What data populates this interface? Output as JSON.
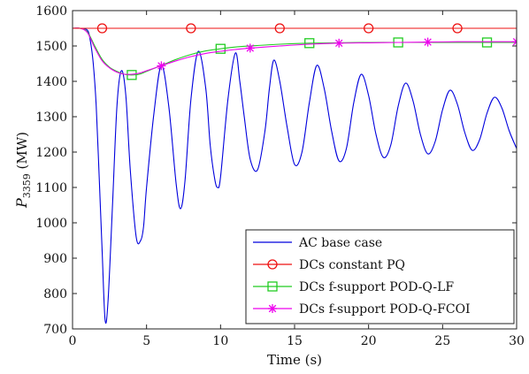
{
  "chart_data": {
    "type": "line",
    "xlabel": "Time (s)",
    "ylabel": {
      "base": "P",
      "subscript": "3359",
      "unit": " (MW)"
    },
    "xlim": [
      0,
      30
    ],
    "ylim": [
      700,
      1600
    ],
    "x_ticks": [
      0,
      5,
      10,
      15,
      20,
      25,
      30
    ],
    "y_ticks": [
      700,
      800,
      900,
      1000,
      1100,
      1200,
      1300,
      1400,
      1500,
      1600
    ],
    "x_tick_labels": [
      "0",
      "5",
      "10",
      "15",
      "20",
      "25",
      "30"
    ],
    "y_tick_labels": [
      "700",
      "800",
      "900",
      "1000",
      "1100",
      "1200",
      "1300",
      "1400",
      "1500",
      "1600"
    ],
    "grid": false,
    "legend_position": "bottom-right",
    "series": [
      {
        "name": "AC base case",
        "color": "#0000dd",
        "marker": "none",
        "marker_x": [],
        "x": [
          0,
          0.5,
          1.0,
          1.2,
          1.4,
          1.6,
          1.8,
          2.0,
          2.2,
          2.4,
          2.7,
          3.0,
          3.3,
          3.6,
          3.9,
          4.3,
          4.6,
          4.8,
          5.0,
          5.5,
          6.0,
          6.5,
          7.0,
          7.3,
          7.6,
          8.0,
          8.5,
          9.0,
          9.3,
          9.6,
          9.8,
          10.0,
          10.5,
          11.0,
          11.3,
          11.6,
          12.0,
          12.5,
          13.0,
          13.3,
          13.6,
          14.0,
          14.5,
          15.0,
          15.5,
          16.0,
          16.5,
          17.0,
          17.5,
          18.0,
          18.5,
          19.0,
          19.5,
          20.0,
          20.5,
          21.0,
          21.5,
          22.0,
          22.5,
          23.0,
          23.5,
          24.0,
          24.5,
          25.0,
          25.5,
          26.0,
          26.5,
          27.0,
          27.5,
          28.0,
          28.5,
          29.0,
          29.5,
          30.0
        ],
        "y": [
          1550,
          1550,
          1545,
          1515,
          1450,
          1330,
          1130,
          920,
          725,
          780,
          1050,
          1330,
          1430,
          1360,
          1150,
          960,
          950,
          990,
          1100,
          1310,
          1445,
          1330,
          1110,
          1040,
          1120,
          1350,
          1485,
          1380,
          1220,
          1125,
          1100,
          1130,
          1350,
          1480,
          1400,
          1300,
          1180,
          1150,
          1260,
          1380,
          1460,
          1400,
          1270,
          1165,
          1200,
          1340,
          1445,
          1380,
          1260,
          1175,
          1210,
          1340,
          1420,
          1360,
          1250,
          1185,
          1220,
          1330,
          1395,
          1345,
          1250,
          1195,
          1230,
          1320,
          1375,
          1335,
          1255,
          1205,
          1235,
          1310,
          1355,
          1325,
          1260,
          1210
        ]
      },
      {
        "name": "DCs constant PQ",
        "color": "#ee1111",
        "marker": "circle",
        "marker_x": [
          2,
          8,
          14,
          20,
          26
        ],
        "x": [
          0,
          30
        ],
        "y": [
          1550,
          1550
        ]
      },
      {
        "name": "DCs f-support POD-Q-LF",
        "color": "#22cc22",
        "marker": "square",
        "marker_x": [
          4,
          10,
          16,
          22,
          28
        ],
        "x": [
          0,
          0.5,
          1.0,
          1.5,
          2.0,
          2.5,
          3.0,
          3.5,
          4.0,
          4.5,
          5.0,
          6.0,
          7.0,
          8.0,
          9.0,
          10.0,
          11.0,
          12.0,
          14.0,
          16.0,
          18.0,
          20.0,
          22.0,
          24.0,
          26.0,
          28.0,
          30.0
        ],
        "y": [
          1550,
          1550,
          1540,
          1500,
          1462,
          1440,
          1428,
          1420,
          1418,
          1420,
          1428,
          1445,
          1462,
          1476,
          1486,
          1492,
          1497,
          1500,
          1505,
          1508,
          1509,
          1510,
          1510,
          1510,
          1510,
          1510,
          1510
        ]
      },
      {
        "name": "DCs f-support POD-Q-FCOI",
        "color": "#ee00ee",
        "marker": "star",
        "marker_x": [
          6,
          12,
          18,
          24,
          30
        ],
        "x": [
          0,
          0.5,
          1.0,
          1.5,
          2.0,
          2.5,
          3.0,
          3.5,
          4.0,
          4.5,
          5.0,
          6.0,
          7.0,
          8.0,
          9.0,
          10.0,
          11.0,
          12.0,
          14.0,
          16.0,
          18.0,
          20.0,
          22.0,
          24.0,
          26.0,
          28.0,
          30.0
        ],
        "y": [
          1550,
          1550,
          1538,
          1495,
          1458,
          1438,
          1426,
          1420,
          1420,
          1423,
          1430,
          1444,
          1458,
          1470,
          1479,
          1485,
          1490,
          1494,
          1500,
          1505,
          1508,
          1509,
          1510,
          1511,
          1512,
          1512,
          1512
        ]
      }
    ]
  }
}
